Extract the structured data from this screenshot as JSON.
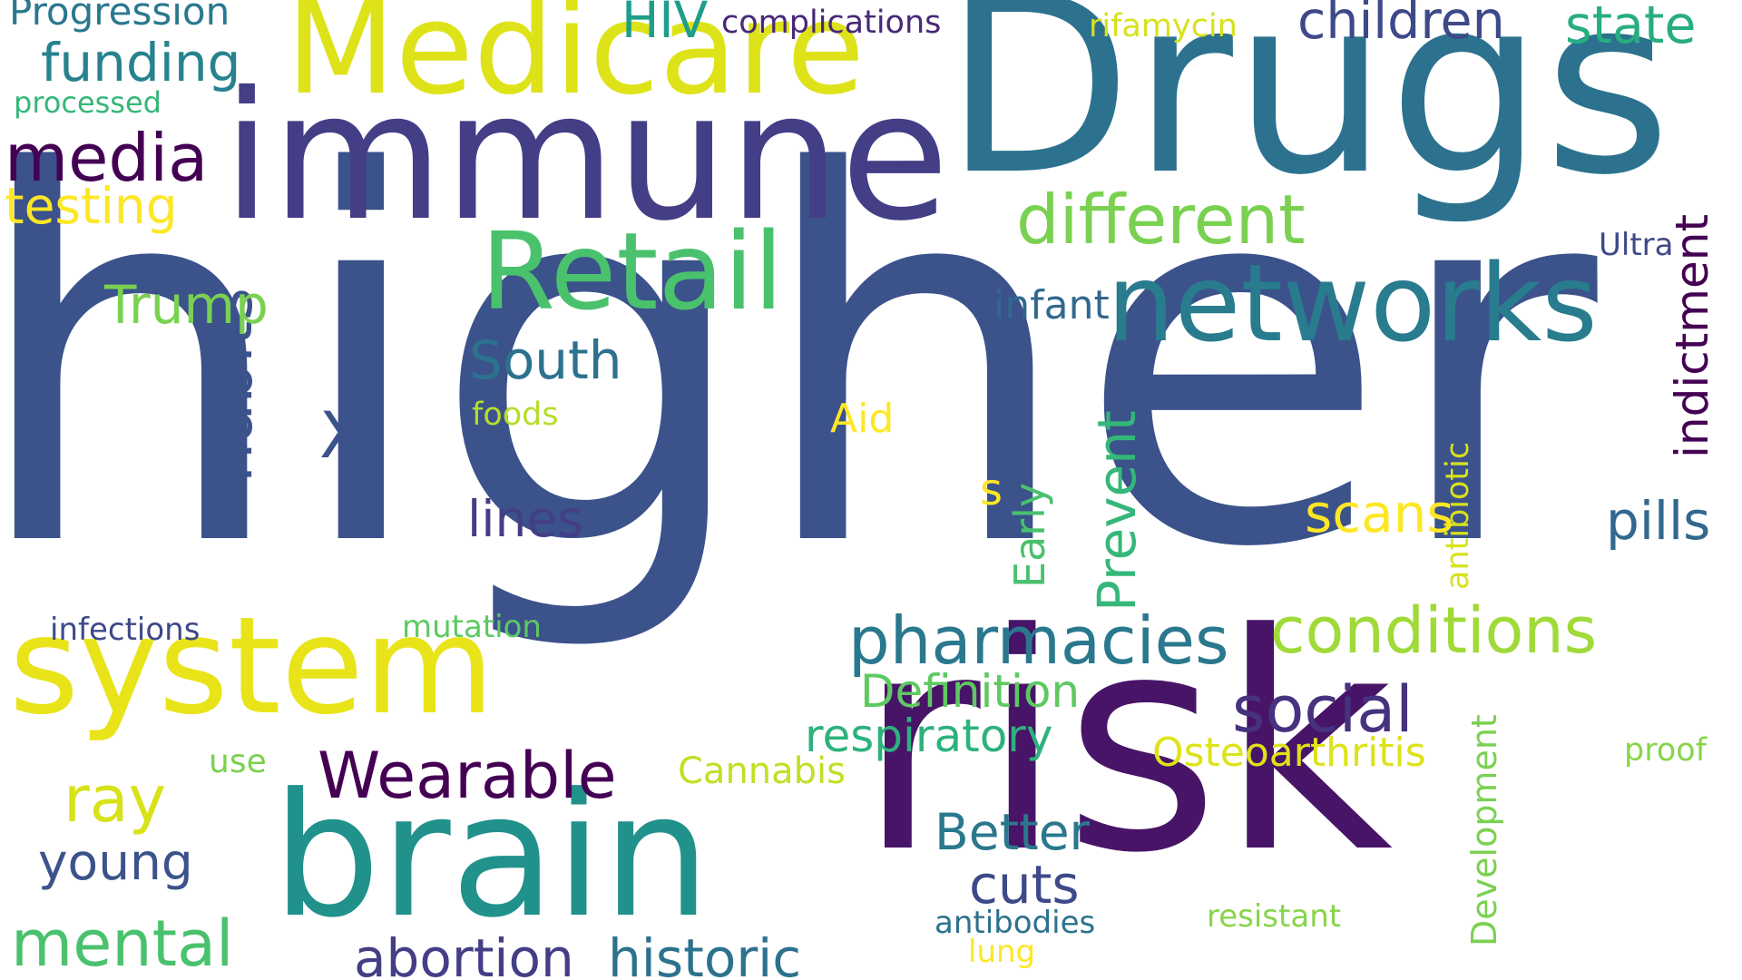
{
  "words": [
    {
      "id": "w-higher",
      "text": "higher",
      "color": "#3b528b",
      "rotated": false
    },
    {
      "id": "w-drugs",
      "text": "Drugs",
      "color": "#2c728e",
      "rotated": false
    },
    {
      "id": "w-risk",
      "text": "risk",
      "color": "#481467",
      "rotated": false
    },
    {
      "id": "w-immune",
      "text": "immune",
      "color": "#433e85",
      "rotated": false
    },
    {
      "id": "w-medicare",
      "text": "Medicare",
      "color": "#dde318",
      "rotated": false
    },
    {
      "id": "w-system",
      "text": "system",
      "color": "#e8e419",
      "rotated": false
    },
    {
      "id": "w-brain",
      "text": "brain",
      "color": "#21918c",
      "rotated": false
    },
    {
      "id": "w-retail",
      "text": "Retail",
      "color": "#4ac16d",
      "rotated": false
    },
    {
      "id": "w-networks",
      "text": "networks",
      "color": "#287c8e",
      "rotated": false
    },
    {
      "id": "w-different",
      "text": "different",
      "color": "#7ad151",
      "rotated": false
    },
    {
      "id": "w-pharmacies",
      "text": "pharmacies",
      "color": "#2a788e",
      "rotated": false
    },
    {
      "id": "w-conditions",
      "text": "conditions",
      "color": "#a0da39",
      "rotated": false
    },
    {
      "id": "w-children",
      "text": "children",
      "color": "#3e4989",
      "rotated": false
    },
    {
      "id": "w-state",
      "text": "state",
      "color": "#27ad81",
      "rotated": false
    },
    {
      "id": "w-media",
      "text": "media",
      "color": "#440154",
      "rotated": false
    },
    {
      "id": "w-funding",
      "text": "funding",
      "color": "#26828e",
      "rotated": false
    },
    {
      "id": "w-testing",
      "text": "testing",
      "color": "#fde725",
      "rotated": false
    },
    {
      "id": "w-progression",
      "text": "Progression",
      "color": "#2a788e",
      "rotated": false
    },
    {
      "id": "w-processed",
      "text": "processed",
      "color": "#35b779",
      "rotated": false
    },
    {
      "id": "w-hiv",
      "text": "HIV",
      "color": "#1f9e89",
      "rotated": false
    },
    {
      "id": "w-complications",
      "text": "complications",
      "color": "#482878",
      "rotated": false
    },
    {
      "id": "w-rifamycin",
      "text": "rifamycin",
      "color": "#d8e219",
      "rotated": false
    },
    {
      "id": "w-ultra",
      "text": "Ultra",
      "color": "#3e4989",
      "rotated": false
    },
    {
      "id": "w-indictment",
      "text": "indictment",
      "color": "#440154",
      "rotated": true
    },
    {
      "id": "w-habits",
      "text": "habits",
      "color": "#3b528b",
      "rotated": true
    },
    {
      "id": "w-trump",
      "text": "Trump",
      "color": "#7ad151",
      "rotated": false
    },
    {
      "id": "w-infant",
      "text": "infant",
      "color": "#31688e",
      "rotated": false
    },
    {
      "id": "w-south",
      "text": "South",
      "color": "#2c728e",
      "rotated": false
    },
    {
      "id": "w-x",
      "text": "X",
      "color": "#3b528b",
      "rotated": false
    },
    {
      "id": "w-foods",
      "text": "foods",
      "color": "#b5de2b",
      "rotated": false
    },
    {
      "id": "w-aid",
      "text": "Aid",
      "color": "#fde725",
      "rotated": false
    },
    {
      "id": "w-prevent",
      "text": "Prevent",
      "color": "#35b779",
      "rotated": true
    },
    {
      "id": "w-early",
      "text": "Early",
      "color": "#4ac16d",
      "rotated": true
    },
    {
      "id": "w-antibiotic",
      "text": "antibiotic",
      "color": "#d8e219",
      "rotated": true
    },
    {
      "id": "w-s",
      "text": "s",
      "color": "#fde725",
      "rotated": false
    },
    {
      "id": "w-lines",
      "text": "lines",
      "color": "#433e85",
      "rotated": false
    },
    {
      "id": "w-scans",
      "text": "scans",
      "color": "#fde725",
      "rotated": false
    },
    {
      "id": "w-pills",
      "text": "pills",
      "color": "#31688e",
      "rotated": false
    },
    {
      "id": "w-infections",
      "text": "infections",
      "color": "#3e4989",
      "rotated": false
    },
    {
      "id": "w-mutation",
      "text": "mutation",
      "color": "#5ec962",
      "rotated": false
    },
    {
      "id": "w-social",
      "text": "social",
      "color": "#46327e",
      "rotated": false
    },
    {
      "id": "w-definition",
      "text": "Definition",
      "color": "#5ec962",
      "rotated": false
    },
    {
      "id": "w-respiratory",
      "text": "respiratory",
      "color": "#2db27d",
      "rotated": false
    },
    {
      "id": "w-osteoarthritis",
      "text": "Osteoarthritis",
      "color": "#dde318",
      "rotated": false
    },
    {
      "id": "w-wearable",
      "text": "Wearable",
      "color": "#440154",
      "rotated": false
    },
    {
      "id": "w-cannabis",
      "text": "Cannabis",
      "color": "#c2df23",
      "rotated": false
    },
    {
      "id": "w-use",
      "text": "use",
      "color": "#7ad151",
      "rotated": false
    },
    {
      "id": "w-ray",
      "text": "ray",
      "color": "#d8e219",
      "rotated": false
    },
    {
      "id": "w-young",
      "text": "young",
      "color": "#3b528b",
      "rotated": false
    },
    {
      "id": "w-better",
      "text": "Better",
      "color": "#2a788e",
      "rotated": false
    },
    {
      "id": "w-cuts",
      "text": "cuts",
      "color": "#3e4989",
      "rotated": false
    },
    {
      "id": "w-development",
      "text": "Development",
      "color": "#7ad151",
      "rotated": true
    },
    {
      "id": "w-proof",
      "text": "proof",
      "color": "#86d549",
      "rotated": false
    },
    {
      "id": "w-mental",
      "text": "mental",
      "color": "#4ac16d",
      "rotated": false
    },
    {
      "id": "w-abortion",
      "text": "abortion",
      "color": "#433e85",
      "rotated": false
    },
    {
      "id": "w-historic",
      "text": "historic",
      "color": "#2c728e",
      "rotated": false
    },
    {
      "id": "w-antibodies",
      "text": "antibodies",
      "color": "#2c728e",
      "rotated": false
    },
    {
      "id": "w-resistant",
      "text": "resistant",
      "color": "#86d549",
      "rotated": false
    },
    {
      "id": "w-lung",
      "text": "lung",
      "color": "#fde725",
      "rotated": false
    }
  ]
}
